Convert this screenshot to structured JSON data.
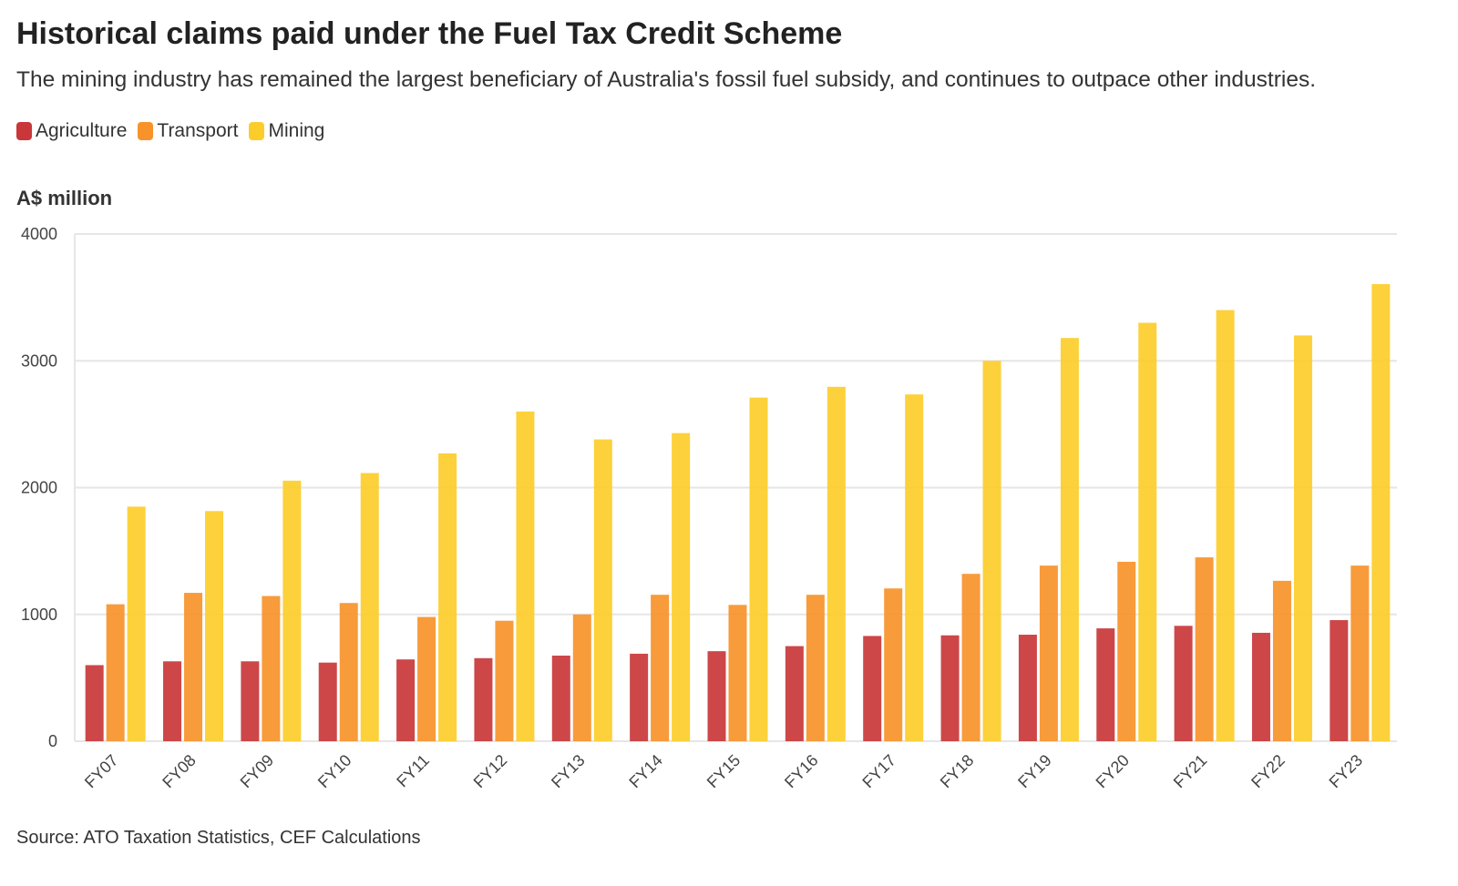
{
  "chart_data": {
    "type": "bar",
    "title": "Historical claims paid under the Fuel Tax Credit Scheme",
    "subtitle": "The mining industry has remained the largest beneficiary of Australia's fossil fuel subsidy, and continues to outpace other industries.",
    "ylabel": "A$ million",
    "xlabel": "",
    "ylim": [
      0,
      4000
    ],
    "yticks": [
      "0",
      "1000",
      "2000",
      "3000",
      "4000"
    ],
    "legend_position": "top-left",
    "grid": true,
    "categories": [
      "FY07",
      "FY08",
      "FY09",
      "FY10",
      "FY11",
      "FY12",
      "FY13",
      "FY14",
      "FY15",
      "FY16",
      "FY17",
      "FY18",
      "FY19",
      "FY20",
      "FY21",
      "FY22",
      "FY23"
    ],
    "series": [
      {
        "name": "Agriculture",
        "color": "#c9373a",
        "values": [
          600,
          630,
          630,
          620,
          645,
          655,
          675,
          690,
          710,
          750,
          830,
          835,
          840,
          890,
          910,
          855,
          955
        ]
      },
      {
        "name": "Transport",
        "color": "#f7932a",
        "values": [
          1080,
          1170,
          1145,
          1090,
          980,
          950,
          1000,
          1155,
          1075,
          1155,
          1205,
          1320,
          1385,
          1415,
          1450,
          1265,
          1385
        ]
      },
      {
        "name": "Mining",
        "color": "#fccd2a",
        "values": [
          1850,
          1815,
          2055,
          2115,
          2270,
          2600,
          2380,
          2430,
          2710,
          2795,
          2735,
          3000,
          3180,
          3300,
          3400,
          3200,
          3605
        ]
      }
    ],
    "source": "Source: ATO Taxation Statistics, CEF Calculations"
  }
}
